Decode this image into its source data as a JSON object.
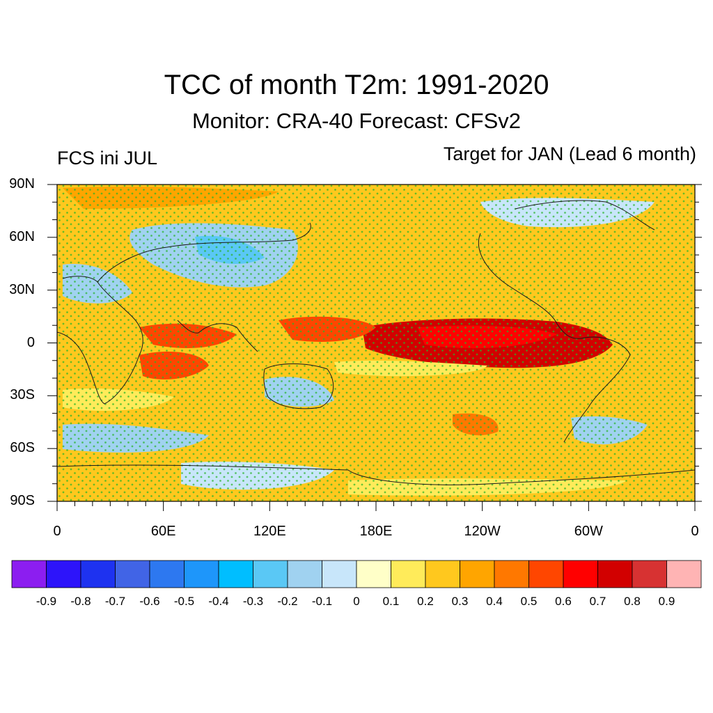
{
  "figure": {
    "title": "TCC of month T2m: 1991-2020",
    "subtitle": "Monitor: CRA-40   Forecast: CFSv2",
    "left_label": "FCS ini JUL",
    "right_label": "Target for JAN (Lead 6 month)"
  },
  "map": {
    "projection": "cylindrical-equidistant",
    "lon_range": [
      0,
      360
    ],
    "lat_range": [
      -90,
      90
    ],
    "lat_ticks": [
      "90N",
      "60N",
      "30N",
      "0",
      "30S",
      "60S",
      "90S"
    ],
    "lat_values": [
      90,
      60,
      30,
      0,
      -30,
      -60,
      -90
    ],
    "lon_ticks": [
      "0",
      "60E",
      "120E",
      "180E",
      "120W",
      "60W",
      "0"
    ],
    "lon_values": [
      0,
      60,
      120,
      180,
      240,
      300,
      360
    ],
    "stippling": "green dots mark significant correlation"
  },
  "colorbar": {
    "labels": [
      "-0.9",
      "-0.8",
      "-0.7",
      "-0.6",
      "-0.5",
      "-0.4",
      "-0.3",
      "-0.2",
      "-0.1",
      "0",
      "0.1",
      "0.2",
      "0.3",
      "0.4",
      "0.5",
      "0.6",
      "0.7",
      "0.8",
      "0.9"
    ],
    "colors": [
      "#8c1ef0",
      "#2d14fa",
      "#1e32f0",
      "#4164e6",
      "#2d78f0",
      "#1e96fa",
      "#00beff",
      "#5ac8f5",
      "#a0d2f0",
      "#c8e6fa",
      "#ffffc8",
      "#ffeb5a",
      "#ffc81e",
      "#ffa500",
      "#ff7800",
      "#ff4600",
      "#ff0000",
      "#d20000",
      "#d73232",
      "#ffb4b4"
    ]
  },
  "colors": {
    "ocean_base": "#ffc81e",
    "stipple": "#28b428",
    "coast": "#1a1a1a"
  }
}
